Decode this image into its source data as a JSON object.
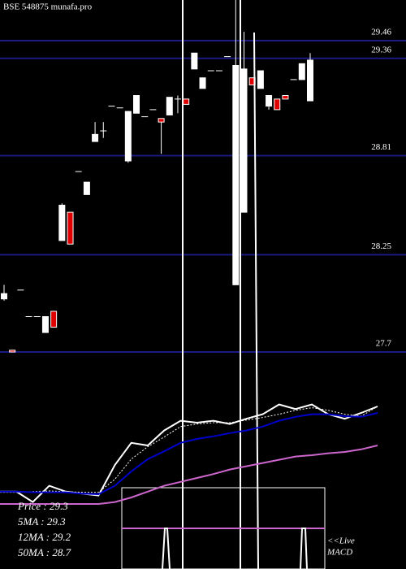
{
  "chart_data": [
    {
      "type": "candlestick",
      "title": "BSE 548875 munafa.pro",
      "ylim": [
        27.53,
        29.69
      ],
      "yticks": [
        29.46,
        29.36,
        28.81,
        28.25,
        27.7
      ],
      "grid": true,
      "grid_color": "#1a1a80",
      "up_color": "#ffffff",
      "down_color": "#e00000",
      "open": [
        28.0,
        27.71,
        28.05,
        27.9,
        27.9,
        27.81,
        27.93,
        28.33,
        28.49,
        28.72,
        28.59,
        28.89,
        28.95,
        29.09,
        29.08,
        28.78,
        29.05,
        29.03,
        29.07,
        29.02,
        29.04,
        29.13,
        29.13,
        29.3,
        29.19,
        29.29,
        29.29,
        29.37,
        28.08,
        28.49,
        29.25,
        29.19,
        29.09,
        29.13,
        29.15,
        29.24,
        29.24,
        29.12
      ],
      "high": [
        28.08,
        27.71,
        28.05,
        27.9,
        27.9,
        27.9,
        27.93,
        28.54,
        28.49,
        28.72,
        28.66,
        29.0,
        29.0,
        29.09,
        29.08,
        29.06,
        29.15,
        29.03,
        29.07,
        29.02,
        29.14,
        29.15,
        29.13,
        29.39,
        29.25,
        29.29,
        29.29,
        29.37,
        29.69,
        29.51,
        29.25,
        29.29,
        29.15,
        29.13,
        29.15,
        29.24,
        29.33,
        29.39
      ],
      "low": [
        27.99,
        27.7,
        28.05,
        27.9,
        27.9,
        27.81,
        27.84,
        28.33,
        28.31,
        28.72,
        28.59,
        28.89,
        28.91,
        29.09,
        29.08,
        28.77,
        29.05,
        29.03,
        29.07,
        28.82,
        29.04,
        29.05,
        29.1,
        29.3,
        29.19,
        29.29,
        29.29,
        29.37,
        28.08,
        28.49,
        29.21,
        29.19,
        29.07,
        29.07,
        29.13,
        29.24,
        29.24,
        29.12
      ],
      "close": [
        28.03,
        27.7,
        28.05,
        27.9,
        27.9,
        27.9,
        27.84,
        28.53,
        28.31,
        28.72,
        28.66,
        28.93,
        28.95,
        29.09,
        29.08,
        29.06,
        29.15,
        29.03,
        29.07,
        29.0,
        29.14,
        29.13,
        29.1,
        29.39,
        29.25,
        29.29,
        29.29,
        29.37,
        29.32,
        29.3,
        29.21,
        29.29,
        29.15,
        29.07,
        29.13,
        29.24,
        29.33,
        29.35
      ]
    },
    {
      "type": "line",
      "ylim": [
        26.8,
        29.675
      ],
      "series": [
        {
          "name": "Price",
          "color": "#ffffff",
          "values": [
            27.99,
            27.99,
            27.83,
            28.08,
            27.99,
            27.96,
            27.93,
            28.4,
            28.74,
            28.7,
            28.93,
            29.08,
            29.05,
            29.08,
            29.03,
            29.11,
            29.18,
            29.33,
            29.26,
            29.33,
            29.18,
            29.11,
            29.2,
            29.3
          ]
        },
        {
          "name": "5MA",
          "color": "#ffffff",
          "values": [
            27.98,
            27.98,
            27.99,
            28.0,
            27.99,
            27.98,
            27.98,
            28.18,
            28.49,
            28.68,
            28.83,
            28.99,
            29.03,
            29.05,
            29.05,
            29.09,
            29.13,
            29.18,
            29.24,
            29.28,
            29.24,
            29.18,
            29.15,
            29.3
          ]
        },
        {
          "name": "12MA",
          "color": "#0000cc",
          "values": [
            27.99,
            27.99,
            27.98,
            27.98,
            27.98,
            27.96,
            27.95,
            28.08,
            28.3,
            28.49,
            28.61,
            28.74,
            28.8,
            28.84,
            28.89,
            28.93,
            28.99,
            29.08,
            29.14,
            29.18,
            29.18,
            29.15,
            29.14,
            29.2
          ]
        },
        {
          "name": "50MA",
          "color": "#cc66cc",
          "values": [
            27.8,
            27.8,
            27.8,
            27.8,
            27.8,
            27.8,
            27.8,
            27.83,
            27.9,
            27.99,
            28.08,
            28.14,
            28.2,
            28.26,
            28.33,
            28.38,
            28.43,
            28.48,
            28.53,
            28.55,
            28.58,
            28.6,
            28.64,
            28.7
          ]
        }
      ],
      "legend_texts": [
        "Price    : 29.3",
        "5MA  : 29.3",
        "12MA  : 29.2",
        "50MA  : 28.7"
      ],
      "macd_texts": [
        "<<Live",
        "MACD"
      ]
    }
  ]
}
